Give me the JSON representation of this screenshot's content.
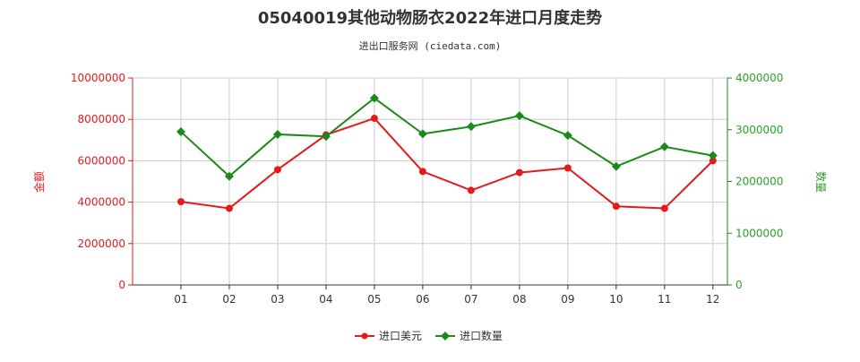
{
  "colors": {
    "usd": "#e41a1c",
    "qty": "#1a8a1a",
    "grid": "#cccccc",
    "axis": "#333333"
  },
  "chart_data": {
    "type": "line",
    "title": "05040019其他动物肠衣2022年进口月度走势",
    "subtitle": "进出口服务网 (ciedata.com)",
    "categories": [
      "01",
      "02",
      "03",
      "04",
      "05",
      "06",
      "07",
      "08",
      "09",
      "10",
      "11",
      "12"
    ],
    "y_left": {
      "label": "金额",
      "ylim": [
        0,
        10000000
      ],
      "ticks": [
        "0",
        "2000000",
        "4000000",
        "6000000",
        "8000000",
        "10000000"
      ]
    },
    "y_right": {
      "label": "数量",
      "ylim": [
        0,
        4000000
      ],
      "ticks": [
        "0",
        "1000000",
        "2000000",
        "3000000",
        "4000000"
      ]
    },
    "grid": true,
    "legend_position": "bottom-center",
    "series": [
      {
        "name": "进口美元",
        "axis": "left",
        "color": "#e41a1c",
        "values": [
          4020000,
          3700000,
          5570000,
          7250000,
          8050000,
          5480000,
          4570000,
          5430000,
          5650000,
          3800000,
          3700000,
          6000000
        ]
      },
      {
        "name": "进口数量",
        "axis": "right",
        "color": "#1a8a1a",
        "values": [
          2960000,
          2100000,
          2910000,
          2870000,
          3610000,
          2920000,
          3060000,
          3270000,
          2890000,
          2290000,
          2670000,
          2500000
        ]
      }
    ]
  }
}
